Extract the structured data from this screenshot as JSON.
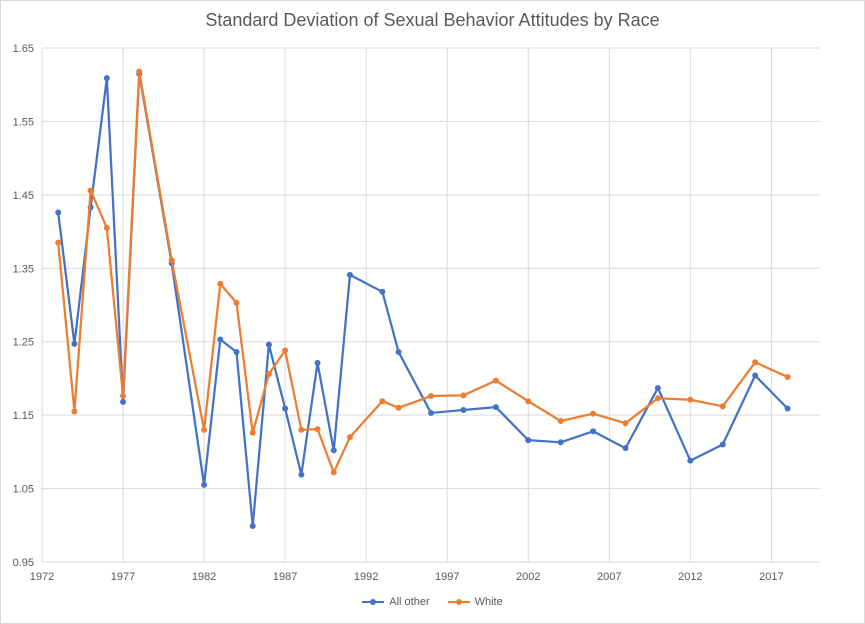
{
  "chart_data": {
    "type": "line",
    "title": "Standard Deviation of Sexual Behavior Attitudes by Race",
    "xlabel": "",
    "ylabel": "",
    "xlim": [
      1972,
      2020
    ],
    "ylim": [
      0.95,
      1.65
    ],
    "x_ticks": [
      "1972",
      "1977",
      "1982",
      "1987",
      "1992",
      "1997",
      "2002",
      "2007",
      "2012",
      "2017"
    ],
    "y_ticks": [
      "0.95",
      "1.05",
      "1.15",
      "1.25",
      "1.35",
      "1.45",
      "1.55",
      "1.65"
    ],
    "grid": true,
    "legend_position": "bottom",
    "series": [
      {
        "name": "All other",
        "color": "#4472c4",
        "x": [
          1973,
          1974,
          1975,
          1976,
          1977,
          1978,
          1980,
          1982,
          1983,
          1984,
          1985,
          1986,
          1987,
          1988,
          1989,
          1990,
          1991,
          1993,
          1994,
          1996,
          1998,
          2000,
          2002,
          2004,
          2006,
          2008,
          2010,
          2012,
          2014,
          2016,
          2018
        ],
        "values": [
          1.426,
          1.247,
          1.433,
          1.609,
          1.168,
          1.615,
          1.357,
          1.055,
          1.253,
          1.236,
          0.999,
          1.246,
          1.159,
          1.069,
          1.221,
          1.102,
          1.341,
          1.318,
          1.236,
          1.153,
          1.157,
          1.161,
          1.116,
          1.113,
          1.128,
          1.105,
          1.187,
          1.088,
          1.11,
          1.204,
          1.159
        ]
      },
      {
        "name": "White",
        "color": "#ed7d31",
        "x": [
          1973,
          1974,
          1975,
          1976,
          1977,
          1978,
          1980,
          1982,
          1983,
          1984,
          1985,
          1986,
          1987,
          1988,
          1989,
          1990,
          1991,
          1993,
          1994,
          1996,
          1998,
          2000,
          2002,
          2004,
          2006,
          2008,
          2010,
          2012,
          2014,
          2016,
          2018
        ],
        "values": [
          1.385,
          1.155,
          1.456,
          1.405,
          1.176,
          1.618,
          1.361,
          1.13,
          1.329,
          1.303,
          1.126,
          1.206,
          1.238,
          1.13,
          1.131,
          1.072,
          1.12,
          1.169,
          1.16,
          1.176,
          1.177,
          1.197,
          1.169,
          1.142,
          1.152,
          1.139,
          1.173,
          1.171,
          1.162,
          1.222,
          1.202
        ]
      }
    ]
  }
}
